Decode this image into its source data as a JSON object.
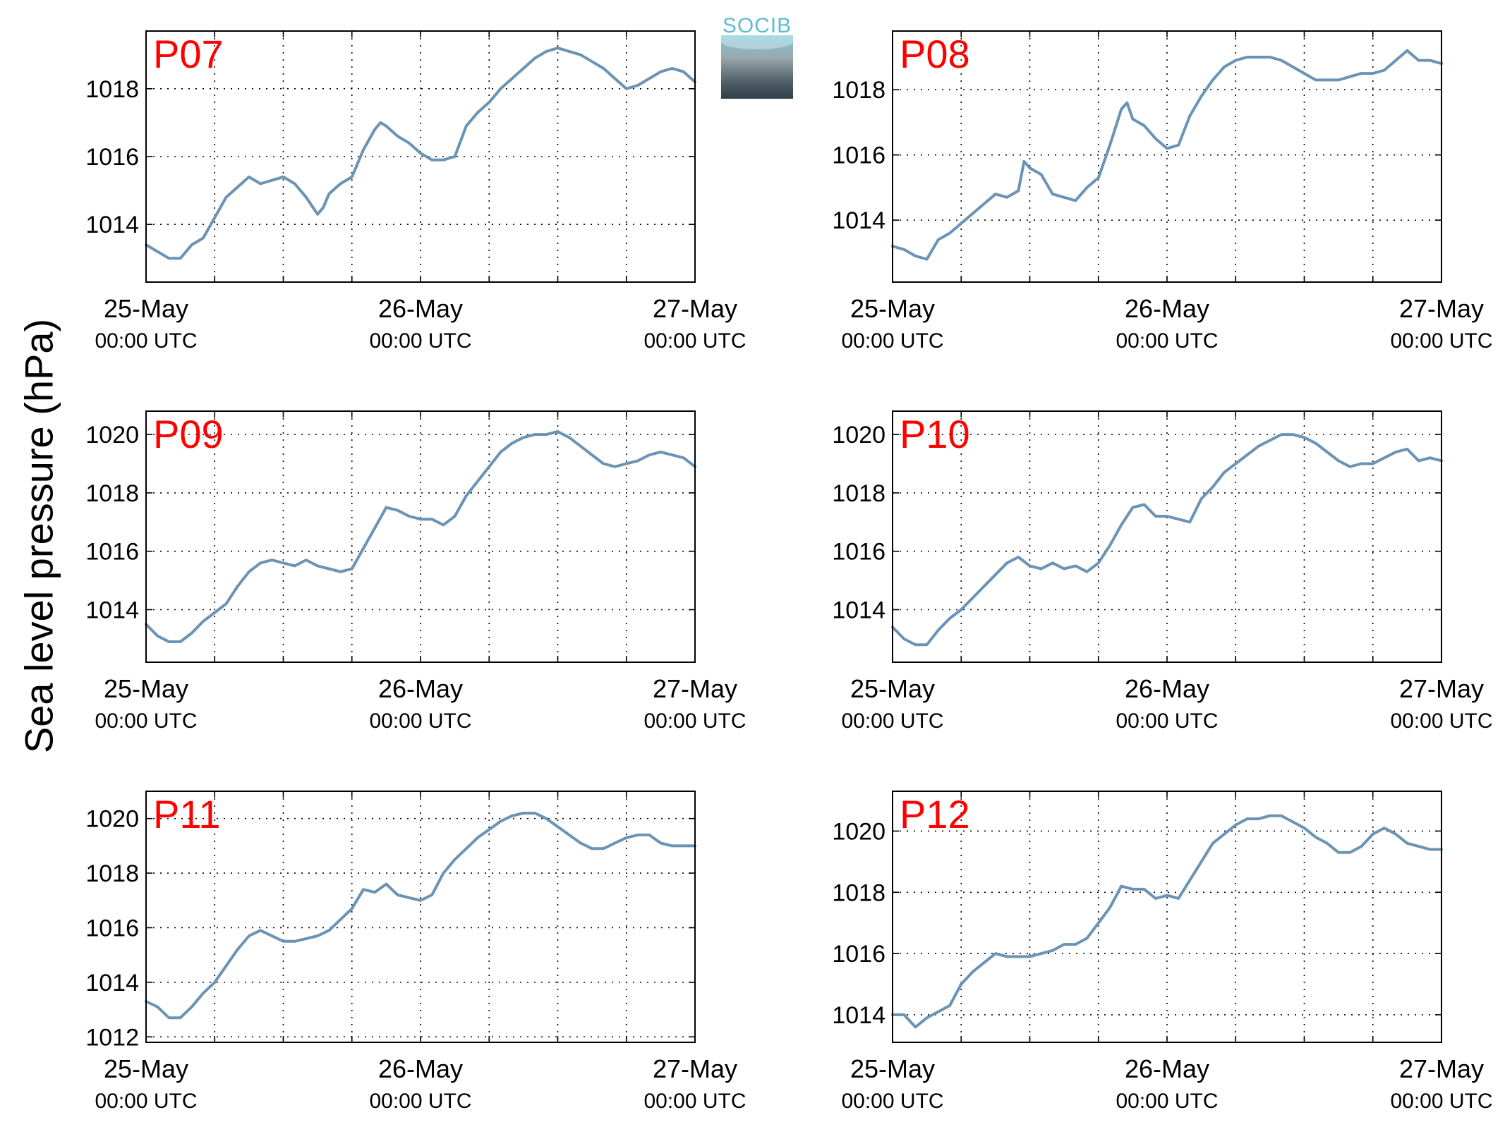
{
  "figure": {
    "ylabel": "Sea level pressure (hPa)",
    "logo_text": "SOCIB",
    "line_color": "#6a93b5",
    "panel_label_color": "#ff0000"
  },
  "chart_data": [
    {
      "type": "line",
      "panel": "P07",
      "xlim": [
        "25-May 00:00 UTC",
        "27-May 00:00 UTC"
      ],
      "xticks": [
        {
          "label": "25-May",
          "sub": "00:00 UTC",
          "pos": 0
        },
        {
          "label": "26-May",
          "sub": "00:00 UTC",
          "pos": 24
        },
        {
          "label": "27-May",
          "sub": "00:00 UTC",
          "pos": 48
        }
      ],
      "ylim": [
        1012.3,
        1019.7
      ],
      "yticks": [
        1014,
        1016,
        1018
      ],
      "grid": true,
      "series": [
        {
          "x_hours": [
            0,
            1,
            2,
            3,
            4,
            5,
            6,
            7,
            8,
            9,
            10,
            11,
            12,
            13,
            14,
            15,
            15.5,
            16,
            17,
            18,
            19,
            20,
            20.5,
            21,
            22,
            23,
            24,
            25,
            26,
            27,
            28,
            29,
            30,
            31,
            32,
            33,
            34,
            35,
            36,
            37,
            38,
            39,
            40,
            41,
            42,
            43,
            44,
            45,
            46,
            47,
            48
          ],
          "values": [
            1013.4,
            1013.2,
            1013.0,
            1013.0,
            1013.4,
            1013.6,
            1014.2,
            1014.8,
            1015.1,
            1015.4,
            1015.2,
            1015.3,
            1015.4,
            1015.2,
            1014.8,
            1014.3,
            1014.5,
            1014.9,
            1015.2,
            1015.4,
            1016.2,
            1016.8,
            1017.0,
            1016.9,
            1016.6,
            1016.4,
            1016.1,
            1015.9,
            1015.9,
            1016.0,
            1016.9,
            1017.3,
            1017.6,
            1018.0,
            1018.3,
            1018.6,
            1018.9,
            1019.1,
            1019.2,
            1019.1,
            1019.0,
            1018.8,
            1018.6,
            1018.3,
            1018.0,
            1018.1,
            1018.3,
            1018.5,
            1018.6,
            1018.5,
            1018.2
          ]
        }
      ]
    },
    {
      "type": "line",
      "panel": "P08",
      "xlim": [
        "25-May 00:00 UTC",
        "27-May 00:00 UTC"
      ],
      "xticks": [
        {
          "label": "25-May",
          "sub": "00:00 UTC",
          "pos": 0
        },
        {
          "label": "26-May",
          "sub": "00:00 UTC",
          "pos": 24
        },
        {
          "label": "27-May",
          "sub": "00:00 UTC",
          "pos": 48
        }
      ],
      "ylim": [
        1012.1,
        1019.8
      ],
      "yticks": [
        1014,
        1016,
        1018
      ],
      "grid": true,
      "series": [
        {
          "x_hours": [
            0,
            1,
            2,
            3,
            4,
            5,
            6,
            7,
            8,
            9,
            10,
            11,
            11.5,
            12,
            13,
            14,
            15,
            16,
            17,
            18,
            19,
            20,
            20.5,
            21,
            22,
            23,
            24,
            25,
            26,
            27,
            28,
            29,
            30,
            31,
            32,
            33,
            34,
            35,
            36,
            37,
            38,
            39,
            40,
            41,
            42,
            43,
            44,
            45,
            46,
            47,
            48
          ],
          "values": [
            1013.2,
            1013.1,
            1012.9,
            1012.8,
            1013.4,
            1013.6,
            1013.9,
            1014.2,
            1014.5,
            1014.8,
            1014.7,
            1014.9,
            1015.8,
            1015.6,
            1015.4,
            1014.8,
            1014.7,
            1014.6,
            1015.0,
            1015.3,
            1016.3,
            1017.4,
            1017.6,
            1017.1,
            1016.9,
            1016.5,
            1016.2,
            1016.3,
            1017.2,
            1017.8,
            1018.3,
            1018.7,
            1018.9,
            1019.0,
            1019.0,
            1019.0,
            1018.9,
            1018.7,
            1018.5,
            1018.3,
            1018.3,
            1018.3,
            1018.4,
            1018.5,
            1018.5,
            1018.6,
            1018.9,
            1019.2,
            1018.9,
            1018.9,
            1018.8
          ]
        }
      ]
    },
    {
      "type": "line",
      "panel": "P09",
      "xlim": [
        "25-May 00:00 UTC",
        "27-May 00:00 UTC"
      ],
      "xticks": [
        {
          "label": "25-May",
          "sub": "00:00 UTC",
          "pos": 0
        },
        {
          "label": "26-May",
          "sub": "00:00 UTC",
          "pos": 24
        },
        {
          "label": "27-May",
          "sub": "00:00 UTC",
          "pos": 48
        }
      ],
      "ylim": [
        1012.2,
        1020.8
      ],
      "yticks": [
        1014,
        1016,
        1018,
        1020
      ],
      "grid": true,
      "series": [
        {
          "x_hours": [
            0,
            1,
            2,
            3,
            4,
            5,
            6,
            7,
            8,
            9,
            10,
            11,
            12,
            13,
            14,
            15,
            16,
            17,
            18,
            19,
            20,
            21,
            22,
            23,
            24,
            25,
            26,
            27,
            28,
            29,
            30,
            31,
            32,
            33,
            34,
            35,
            36,
            37,
            38,
            39,
            40,
            41,
            42,
            43,
            44,
            45,
            46,
            47,
            48
          ],
          "values": [
            1013.5,
            1013.1,
            1012.9,
            1012.9,
            1013.2,
            1013.6,
            1013.9,
            1014.2,
            1014.8,
            1015.3,
            1015.6,
            1015.7,
            1015.6,
            1015.5,
            1015.7,
            1015.5,
            1015.4,
            1015.3,
            1015.4,
            1016.1,
            1016.8,
            1017.5,
            1017.4,
            1017.2,
            1017.1,
            1017.1,
            1016.9,
            1017.2,
            1017.9,
            1018.4,
            1018.9,
            1019.4,
            1019.7,
            1019.9,
            1020.0,
            1020.0,
            1020.1,
            1019.9,
            1019.6,
            1019.3,
            1019.0,
            1018.9,
            1019.0,
            1019.1,
            1019.3,
            1019.4,
            1019.3,
            1019.2,
            1018.9
          ]
        }
      ]
    },
    {
      "type": "line",
      "panel": "P10",
      "xlim": [
        "25-May 00:00 UTC",
        "27-May 00:00 UTC"
      ],
      "xticks": [
        {
          "label": "25-May",
          "sub": "00:00 UTC",
          "pos": 0
        },
        {
          "label": "26-May",
          "sub": "00:00 UTC",
          "pos": 24
        },
        {
          "label": "27-May",
          "sub": "00:00 UTC",
          "pos": 48
        }
      ],
      "ylim": [
        1012.2,
        1020.8
      ],
      "yticks": [
        1014,
        1016,
        1018,
        1020
      ],
      "grid": true,
      "series": [
        {
          "x_hours": [
            0,
            1,
            2,
            3,
            4,
            5,
            6,
            7,
            8,
            9,
            10,
            11,
            12,
            13,
            14,
            15,
            16,
            17,
            18,
            19,
            20,
            21,
            22,
            23,
            24,
            25,
            26,
            27,
            28,
            29,
            30,
            31,
            32,
            33,
            34,
            35,
            36,
            37,
            38,
            39,
            40,
            41,
            42,
            43,
            44,
            45,
            46,
            47,
            48
          ],
          "values": [
            1013.4,
            1013.0,
            1012.8,
            1012.8,
            1013.3,
            1013.7,
            1014.0,
            1014.4,
            1014.8,
            1015.2,
            1015.6,
            1015.8,
            1015.5,
            1015.4,
            1015.6,
            1015.4,
            1015.5,
            1015.3,
            1015.6,
            1016.2,
            1016.9,
            1017.5,
            1017.6,
            1017.2,
            1017.2,
            1017.1,
            1017.0,
            1017.8,
            1018.2,
            1018.7,
            1019.0,
            1019.3,
            1019.6,
            1019.8,
            1020.0,
            1020.0,
            1019.9,
            1019.7,
            1019.4,
            1019.1,
            1018.9,
            1019.0,
            1019.0,
            1019.2,
            1019.4,
            1019.5,
            1019.1,
            1019.2,
            1019.1
          ]
        }
      ]
    },
    {
      "type": "line",
      "panel": "P11",
      "xlim": [
        "25-May 00:00 UTC",
        "27-May 00:00 UTC"
      ],
      "xticks": [
        {
          "label": "25-May",
          "sub": "00:00 UTC",
          "pos": 0
        },
        {
          "label": "26-May",
          "sub": "00:00 UTC",
          "pos": 24
        },
        {
          "label": "27-May",
          "sub": "00:00 UTC",
          "pos": 48
        }
      ],
      "ylim": [
        1011.8,
        1021.0
      ],
      "yticks": [
        1012,
        1014,
        1016,
        1018,
        1020
      ],
      "grid": true,
      "series": [
        {
          "x_hours": [
            0,
            1,
            2,
            3,
            4,
            5,
            6,
            7,
            8,
            9,
            10,
            11,
            12,
            13,
            14,
            15,
            16,
            17,
            18,
            19,
            20,
            21,
            22,
            23,
            24,
            25,
            26,
            27,
            28,
            29,
            30,
            31,
            32,
            33,
            34,
            35,
            36,
            37,
            38,
            39,
            40,
            41,
            42,
            43,
            44,
            45,
            46,
            47,
            48
          ],
          "values": [
            1013.3,
            1013.1,
            1012.7,
            1012.7,
            1013.1,
            1013.6,
            1014.0,
            1014.6,
            1015.2,
            1015.7,
            1015.9,
            1015.7,
            1015.5,
            1015.5,
            1015.6,
            1015.7,
            1015.9,
            1016.3,
            1016.7,
            1017.4,
            1017.3,
            1017.6,
            1017.2,
            1017.1,
            1017.0,
            1017.2,
            1018.0,
            1018.5,
            1018.9,
            1019.3,
            1019.6,
            1019.9,
            1020.1,
            1020.2,
            1020.2,
            1020.0,
            1019.7,
            1019.4,
            1019.1,
            1018.9,
            1018.9,
            1019.1,
            1019.3,
            1019.4,
            1019.4,
            1019.1,
            1019.0,
            1019.0,
            1019.0
          ]
        }
      ]
    },
    {
      "type": "line",
      "panel": "P12",
      "xlim": [
        "25-May 00:00 UTC",
        "27-May 00:00 UTC"
      ],
      "xticks": [
        {
          "label": "25-May",
          "sub": "00:00 UTC",
          "pos": 0
        },
        {
          "label": "26-May",
          "sub": "00:00 UTC",
          "pos": 24
        },
        {
          "label": "27-May",
          "sub": "00:00 UTC",
          "pos": 48
        }
      ],
      "ylim": [
        1013.1,
        1021.3
      ],
      "yticks": [
        1014,
        1016,
        1018,
        1020
      ],
      "grid": true,
      "series": [
        {
          "x_hours": [
            0,
            1,
            2,
            3,
            4,
            5,
            6,
            7,
            8,
            9,
            10,
            11,
            12,
            13,
            14,
            15,
            16,
            17,
            18,
            19,
            20,
            21,
            22,
            23,
            24,
            25,
            26,
            27,
            28,
            29,
            30,
            31,
            32,
            33,
            34,
            35,
            36,
            37,
            38,
            39,
            40,
            41,
            42,
            43,
            44,
            45,
            46,
            47,
            48
          ],
          "values": [
            1014.0,
            1014.0,
            1013.6,
            1013.9,
            1014.1,
            1014.3,
            1015.0,
            1015.4,
            1015.7,
            1016.0,
            1015.9,
            1015.9,
            1015.9,
            1016.0,
            1016.1,
            1016.3,
            1016.3,
            1016.5,
            1017.0,
            1017.5,
            1018.2,
            1018.1,
            1018.1,
            1017.8,
            1017.9,
            1017.8,
            1018.4,
            1019.0,
            1019.6,
            1019.9,
            1020.2,
            1020.4,
            1020.4,
            1020.5,
            1020.5,
            1020.3,
            1020.1,
            1019.8,
            1019.6,
            1019.3,
            1019.3,
            1019.5,
            1019.9,
            1020.1,
            1019.9,
            1019.6,
            1019.5,
            1019.4,
            1019.4
          ]
        }
      ]
    }
  ]
}
